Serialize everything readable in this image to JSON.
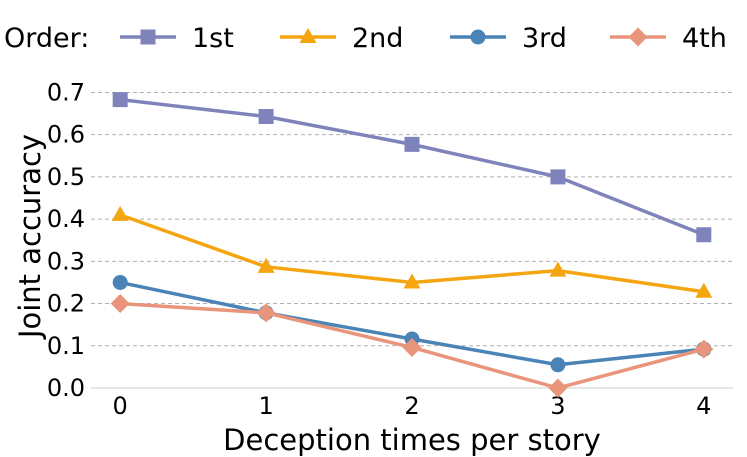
{
  "chart_data": {
    "type": "line",
    "x": [
      0,
      1,
      2,
      3,
      4
    ],
    "xlabel": "Deception times per story",
    "ylabel": "Joint accuracy",
    "xlim": [
      -0.2,
      4.2
    ],
    "ylim": [
      0.0,
      0.72
    ],
    "xticks": [
      "0",
      "1",
      "2",
      "3",
      "4"
    ],
    "yticks": [
      "0.0",
      "0.1",
      "0.2",
      "0.3",
      "0.4",
      "0.5",
      "0.6",
      "0.7"
    ],
    "grid": "horizontal dashed",
    "legend": {
      "title": "Order:",
      "placement": "top"
    },
    "series": [
      {
        "name": "1st",
        "color": "#7f83bc",
        "marker": "square",
        "values": [
          0.683,
          0.643,
          0.577,
          0.5,
          0.363
        ]
      },
      {
        "name": "2nd",
        "color": "#f5a50f",
        "marker": "triangle",
        "values": [
          0.41,
          0.287,
          0.25,
          0.278,
          0.228
        ]
      },
      {
        "name": "3rd",
        "color": "#4a84b6",
        "marker": "circle",
        "values": [
          0.25,
          0.178,
          0.116,
          0.055,
          0.092
        ]
      },
      {
        "name": "4th",
        "color": "#e8957b",
        "marker": "diamond",
        "values": [
          0.2,
          0.178,
          0.096,
          0.0,
          0.092
        ]
      }
    ]
  }
}
